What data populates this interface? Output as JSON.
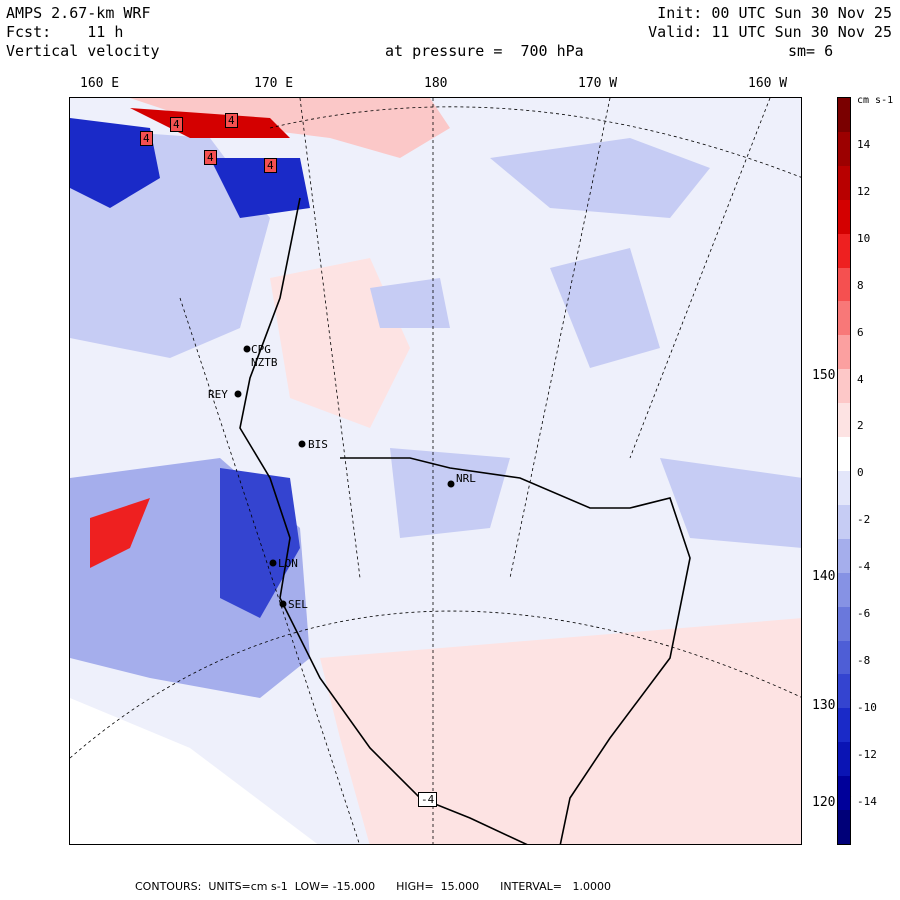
{
  "header": {
    "model": "AMPS 2.67-km WRF",
    "init": "Init: 00 UTC Sun 30 Nov 25",
    "fcst": "Fcst:    11 h",
    "valid": "Valid: 11 UTC Sun 30 Nov 25",
    "field": "Vertical velocity",
    "level": "at pressure =  700 hPa",
    "smoothing": "sm= 6"
  },
  "lon_labels": [
    "160 E",
    "170 E",
    "180",
    "170 W",
    "160 W"
  ],
  "lat_labels": [
    "150 W",
    "140 W",
    "130 W",
    "120 W"
  ],
  "stations": [
    "CPG",
    "NZTB",
    "REY",
    "BIS",
    "NRL",
    "LON",
    "SEL"
  ],
  "colorbar": {
    "unit": "cm s-1",
    "labels": [
      "14",
      "12",
      "10",
      "8",
      "6",
      "4",
      "2",
      "0",
      "-2",
      "-4",
      "-6",
      "-8",
      "-10",
      "-12",
      "-14"
    ],
    "colors": [
      "#7a0000",
      "#9c0000",
      "#b80000",
      "#d40000",
      "#ee2020",
      "#f55050",
      "#f87878",
      "#fba0a0",
      "#fdc8c8",
      "#fde3e3",
      "#ffffff",
      "#e3e6fa",
      "#c6ccf4",
      "#a5aeec",
      "#8692e4",
      "#6a78dc",
      "#4e5ed6",
      "#3444d0",
      "#1a2ac8",
      "#0a14b4",
      "#00009a",
      "#000078"
    ]
  },
  "footer": "CONTOURS:  UNITS=cm s-1  LOW= -15.000      HIGH=  15.000      INTERVAL=   1.0000",
  "map_annotations": [
    "4",
    "4",
    "4",
    "4",
    "4",
    "-4"
  ]
}
